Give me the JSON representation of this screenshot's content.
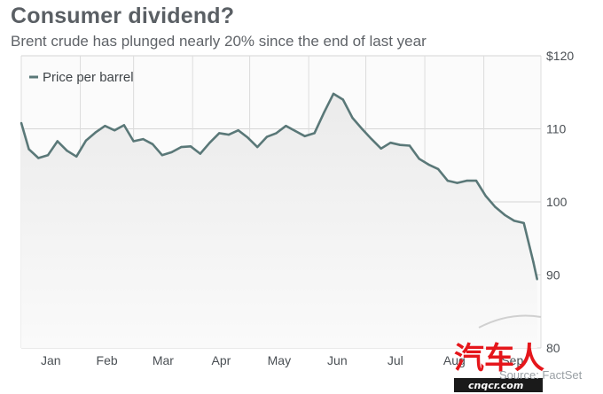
{
  "chart_data": {
    "type": "line",
    "title": "Consumer dividend?",
    "subtitle": "Brent crude has plunged nearly 20% since the end of last year",
    "legend": "Price per barrel",
    "legend_position": "top-left",
    "ylim": [
      80,
      120
    ],
    "yticks": [
      {
        "value": 120,
        "label": "$120"
      },
      {
        "value": 110,
        "label": "110"
      },
      {
        "value": 100,
        "label": "100"
      },
      {
        "value": 90,
        "label": "90"
      },
      {
        "value": 80,
        "label": "80"
      }
    ],
    "categories": [
      "Jan",
      "Feb",
      "Mar",
      "Apr",
      "May",
      "Jun",
      "Jul",
      "Aug",
      "Sep"
    ],
    "grid": true,
    "series": [
      {
        "color": "#5a7878",
        "x": [
          "2014-01-01",
          "2014-01-05",
          "2014-01-10",
          "2014-01-15",
          "2014-01-20",
          "2014-01-25",
          "2014-01-30",
          "2014-02-04",
          "2014-02-09",
          "2014-02-14",
          "2014-02-19",
          "2014-02-24",
          "2014-03-01",
          "2014-03-06",
          "2014-03-11",
          "2014-03-16",
          "2014-03-21",
          "2014-03-26",
          "2014-03-31",
          "2014-04-05",
          "2014-04-10",
          "2014-04-15",
          "2014-04-20",
          "2014-04-25",
          "2014-04-30",
          "2014-05-05",
          "2014-05-10",
          "2014-05-15",
          "2014-05-20",
          "2014-05-25",
          "2014-05-30",
          "2014-06-04",
          "2014-06-09",
          "2014-06-14",
          "2014-06-19",
          "2014-06-24",
          "2014-06-29",
          "2014-07-04",
          "2014-07-09",
          "2014-07-14",
          "2014-07-19",
          "2014-07-24",
          "2014-07-29",
          "2014-08-03",
          "2014-08-08",
          "2014-08-13",
          "2014-08-18",
          "2014-08-23",
          "2014-08-28",
          "2014-09-02",
          "2014-09-07",
          "2014-09-12",
          "2014-09-17",
          "2014-09-22",
          "2014-09-27",
          "2014-09-29"
        ],
        "y": [
          110.8,
          107.2,
          106.0,
          106.4,
          108.3,
          107.0,
          106.2,
          108.4,
          109.5,
          110.4,
          109.8,
          110.5,
          108.3,
          108.6,
          107.9,
          106.4,
          106.8,
          107.5,
          107.6,
          106.6,
          108.1,
          109.4,
          109.2,
          109.8,
          108.8,
          107.5,
          108.9,
          109.4,
          110.4,
          109.7,
          109.0,
          109.4,
          112.2,
          114.8,
          114.0,
          111.5,
          110.0,
          108.6,
          107.3,
          108.1,
          107.8,
          107.7,
          105.9,
          105.1,
          104.5,
          102.9,
          102.6,
          102.9,
          102.9,
          100.8,
          99.3,
          98.2,
          97.4,
          97.1,
          91.8,
          89.4
        ]
      }
    ],
    "source": "Source: FactSet"
  },
  "watermark": {
    "main": "汽车人",
    "site": "cnqcr.com"
  }
}
